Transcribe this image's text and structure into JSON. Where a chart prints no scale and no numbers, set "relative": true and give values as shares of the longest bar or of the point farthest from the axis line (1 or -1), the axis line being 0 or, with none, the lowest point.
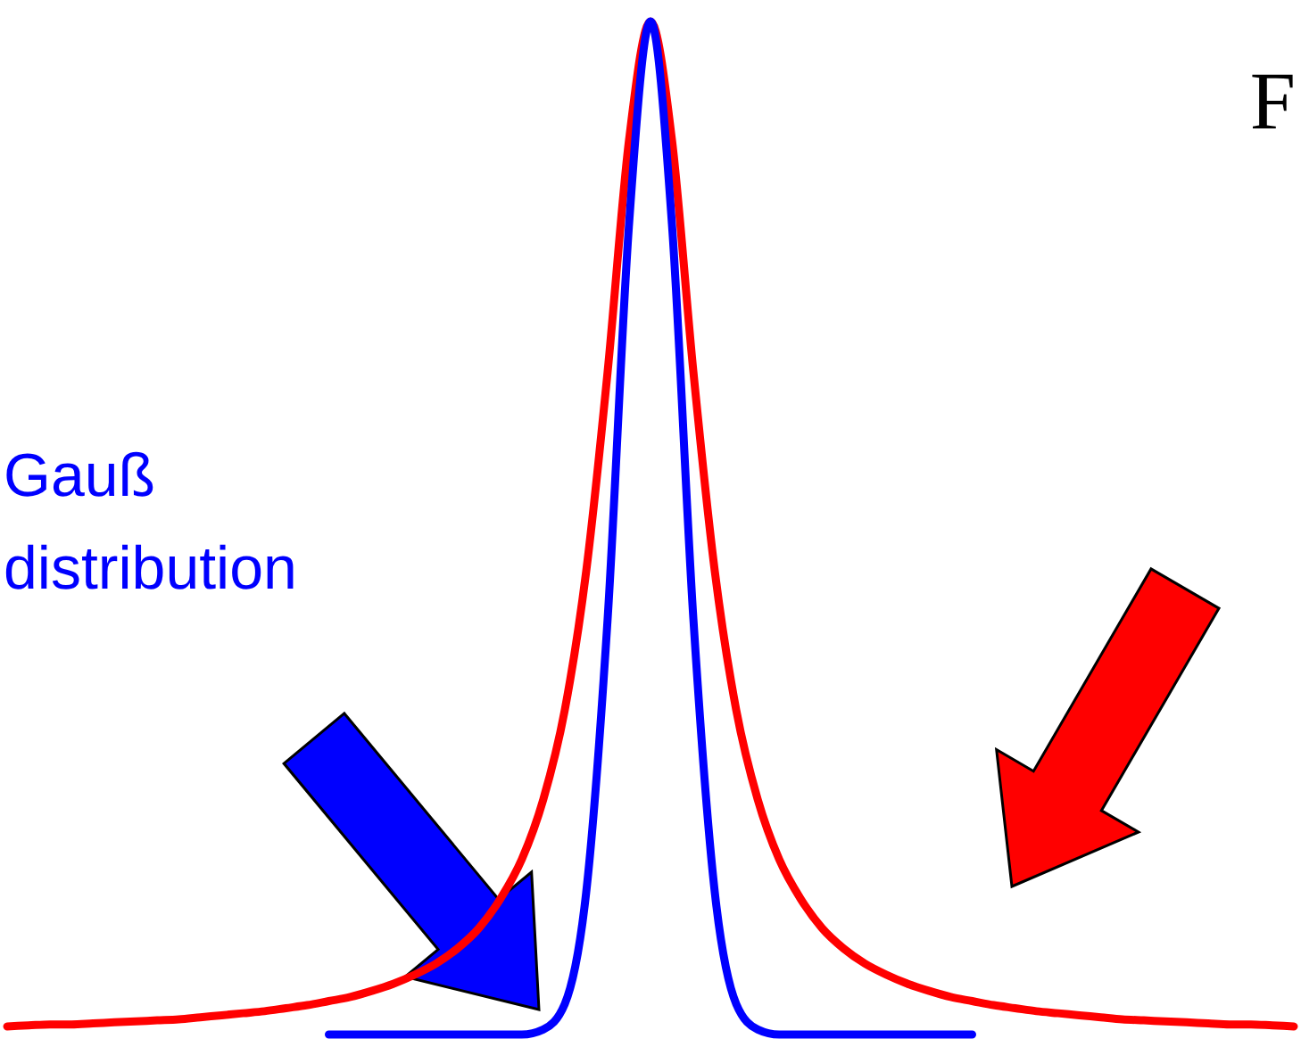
{
  "chart_data": {
    "type": "line",
    "relative": true,
    "categories": [
      null,
      null,
      null,
      null,
      null,
      null,
      null,
      null,
      null,
      null,
      null,
      null,
      null,
      null,
      null,
      null,
      null,
      null,
      null,
      null,
      null,
      null,
      null,
      null,
      null,
      null,
      null,
      null,
      null,
      null,
      null,
      null,
      null,
      null,
      null,
      null,
      null,
      null,
      null,
      null,
      null,
      null,
      null,
      null,
      null,
      null,
      null,
      null,
      null,
      null,
      null,
      null,
      null,
      null,
      null,
      null,
      null,
      null,
      null,
      null,
      null
    ],
    "series": [
      {
        "color": "#ff0000",
        "values": [
          0.008,
          0.009,
          0.01,
          0.01,
          0.011,
          0.012,
          0.013,
          0.014,
          0.015,
          0.017,
          0.019,
          0.021,
          0.023,
          0.026,
          0.029,
          0.033,
          0.037,
          0.043,
          0.05,
          0.059,
          0.07,
          0.085,
          0.105,
          0.134,
          0.173,
          0.232,
          0.32,
          0.457,
          0.654,
          0.883,
          1,
          0.883,
          0.654,
          0.457,
          0.32,
          0.232,
          0.173,
          0.134,
          0.105,
          0.085,
          0.07,
          0.059,
          0.05,
          0.043,
          0.037,
          0.033,
          0.029,
          0.026,
          0.023,
          0.021,
          0.019,
          0.017,
          0.015,
          0.014,
          0.013,
          0.012,
          0.011,
          0.01,
          0.01,
          0.009,
          0.008
        ]
      },
      {
        "name": "Gauß distribution",
        "color": "#0000ff",
        "values": [
          null,
          null,
          null,
          null,
          null,
          null,
          null,
          null,
          null,
          null,
          null,
          null,
          null,
          null,
          null,
          0,
          0,
          0,
          0,
          0,
          0,
          0,
          0,
          0,
          0,
          0.005,
          0.03,
          0.14,
          0.41,
          0.8,
          1,
          0.8,
          0.41,
          0.14,
          0.03,
          0.005,
          0,
          0,
          0,
          0,
          0,
          0,
          0,
          0,
          0,
          0,
          null,
          null,
          null,
          null,
          null,
          null,
          null,
          null,
          null,
          null,
          null,
          null,
          null,
          null,
          null
        ]
      }
    ],
    "annotations": [
      "F"
    ]
  }
}
